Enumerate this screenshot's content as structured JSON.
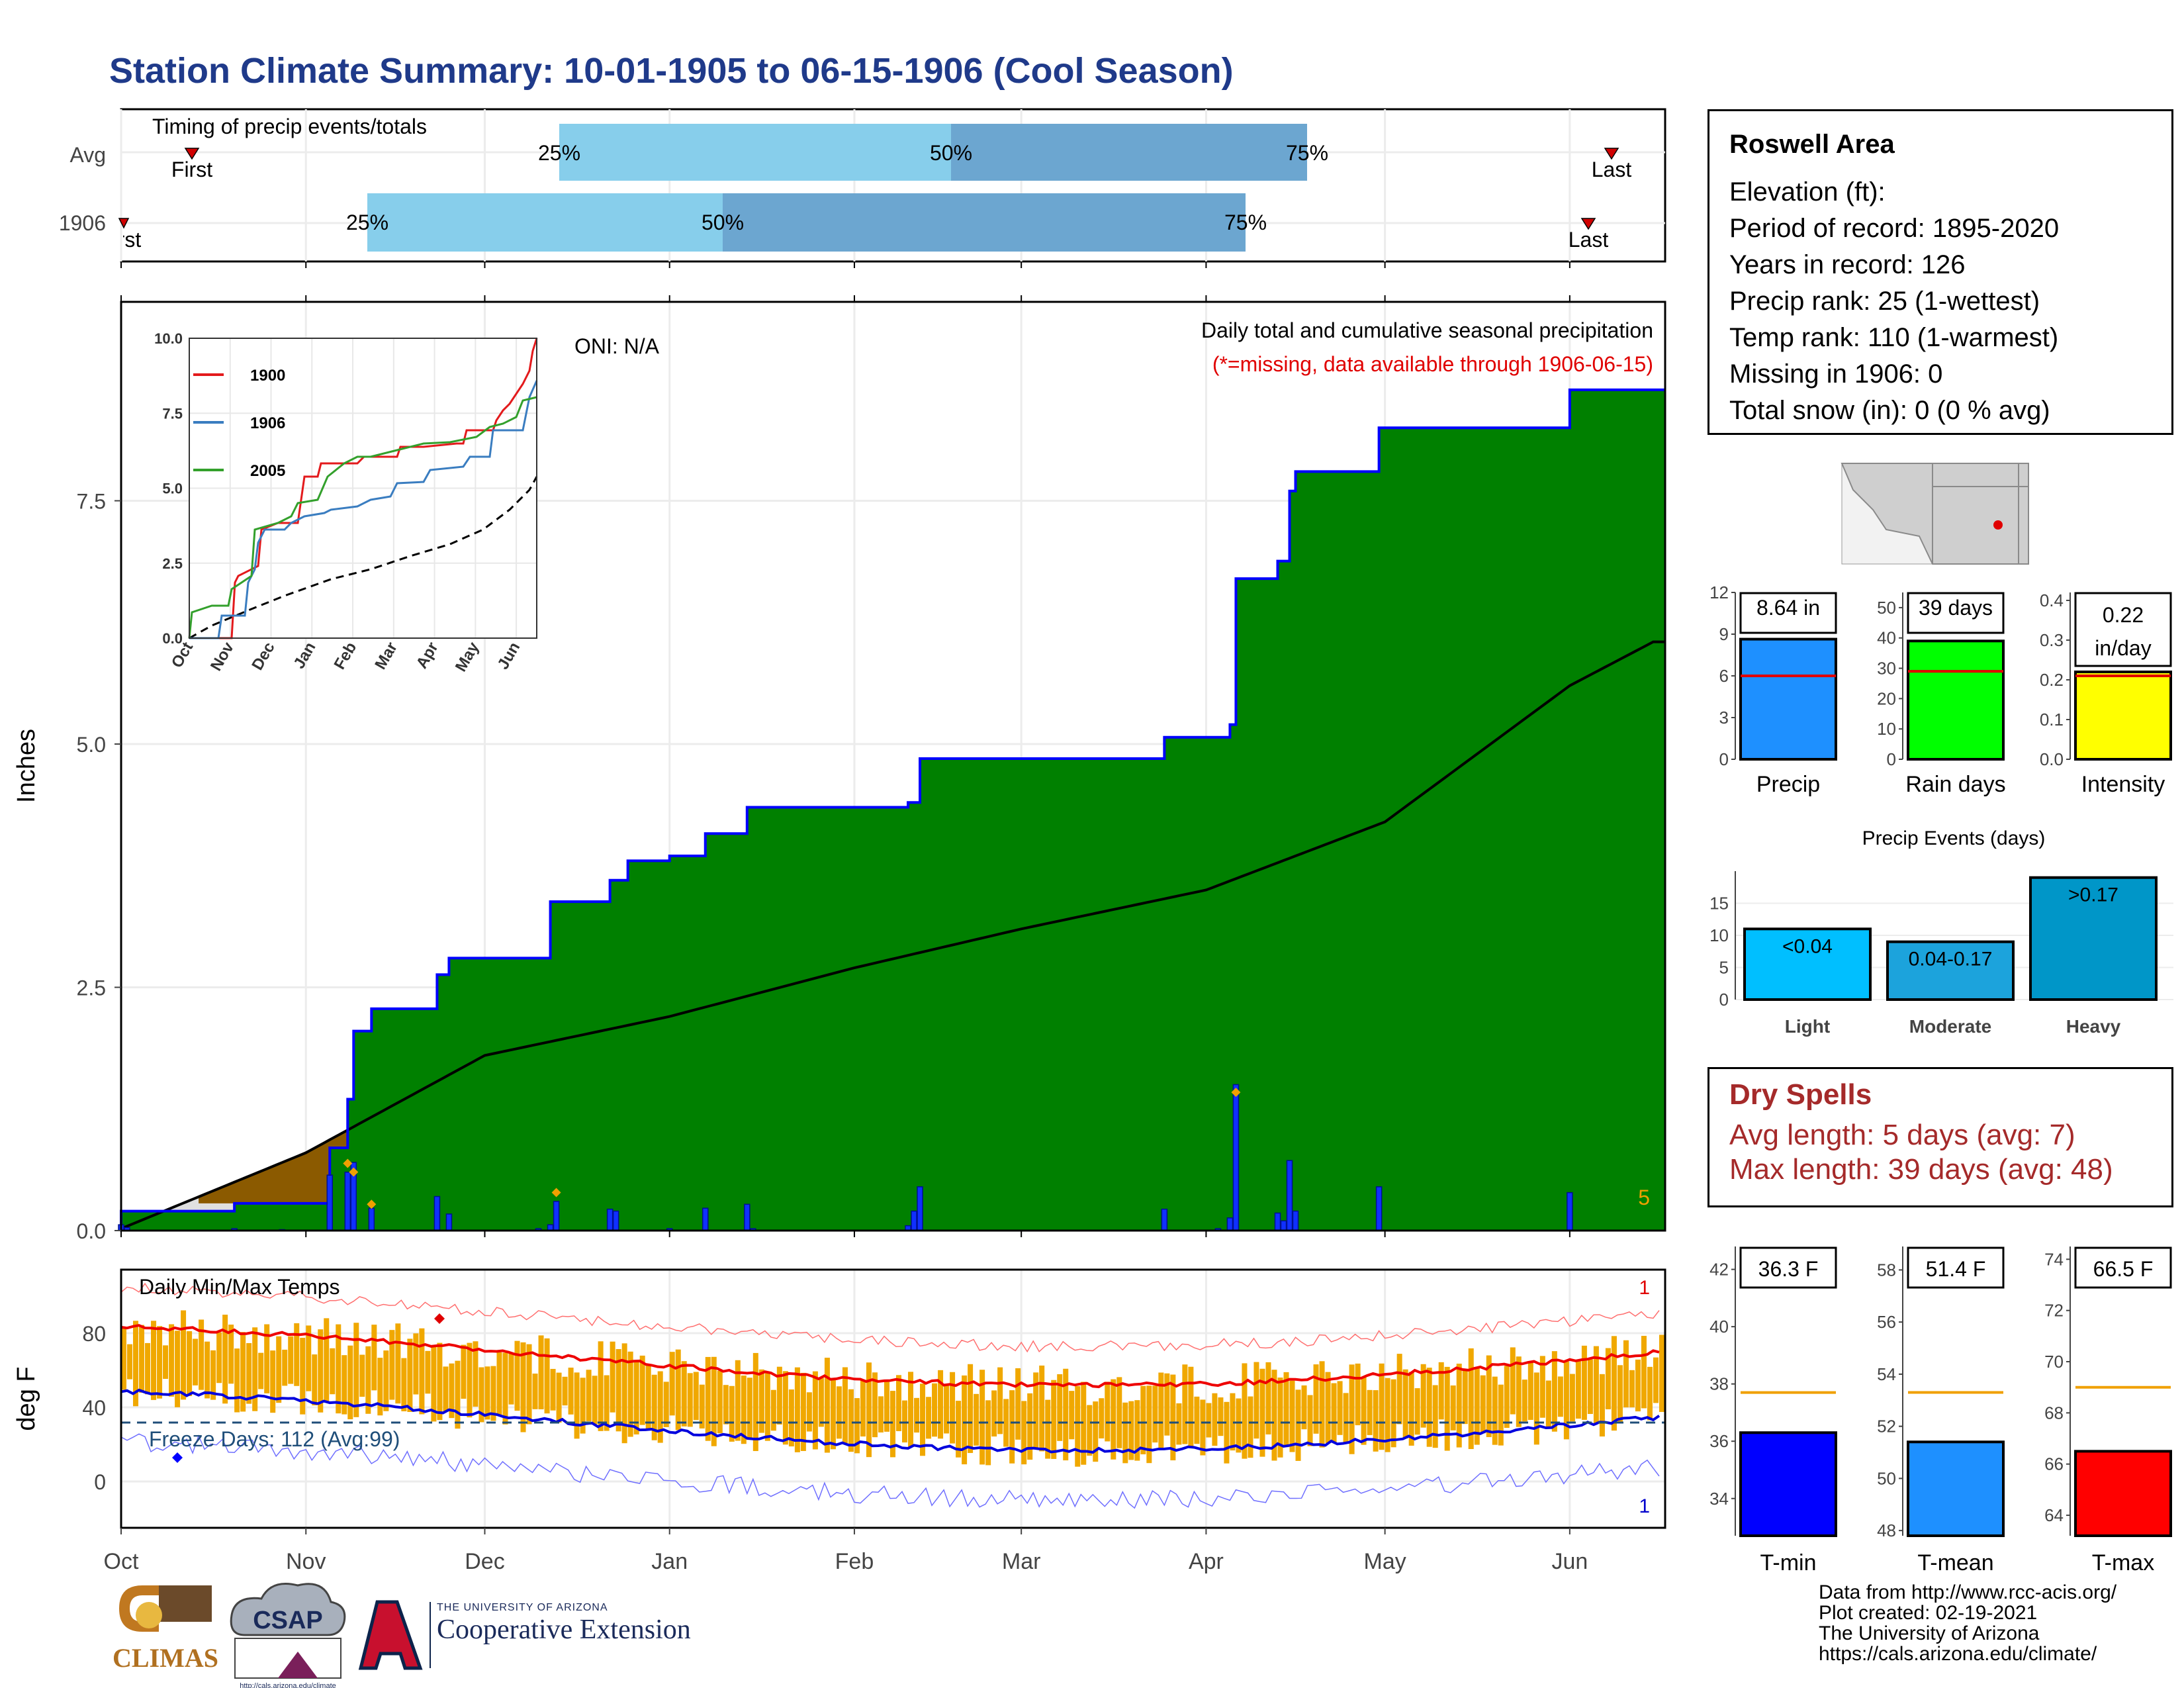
{
  "title": "Station Climate Summary: 10-01-1905 to 06-15-1906 (Cool Season)",
  "colors": {
    "title": "#1f3a8a",
    "green": "#008000",
    "brown": "#8b5a00",
    "gray_area": "#e0e0e0",
    "bar_blue": "#0000ff",
    "light_blue": "#87ceeb",
    "mid_blue": "#6ca6d0",
    "tmin": "#0000ff",
    "tmean": "#1e90ff",
    "tmax": "#ff0000",
    "orange": "#f0a000",
    "dry": "#a52a2a"
  },
  "timing": {
    "header": "Timing of precip events/totals",
    "rows": [
      "Avg",
      "1906"
    ],
    "avg": {
      "first_label": "First",
      "last_label": "Last",
      "p25": "25%",
      "p50": "50%",
      "p75": "75%"
    },
    "y1906": {
      "first_label": "First",
      "last_label": "Last",
      "p25": "25%",
      "p50": "50%",
      "p75": "75%"
    }
  },
  "precip_panel": {
    "ylabel": "Inches",
    "yticks": [
      "0.0",
      "2.5",
      "5.0",
      "7.5"
    ],
    "oni": "ONI: N/A",
    "subtitle": "Daily total and cumulative seasonal precipitation",
    "missing_note": "(*=missing, data available through 1906-06-15)",
    "corner_number": "5"
  },
  "inset": {
    "yticks": [
      "0.0",
      "2.5",
      "5.0",
      "7.5",
      "10.0"
    ],
    "xticks": [
      "Oct",
      "Nov",
      "Dec",
      "Jan",
      "Feb",
      "Mar",
      "Apr",
      "May",
      "Jun"
    ],
    "legend": [
      {
        "label": "1900",
        "color": "#e31a1c"
      },
      {
        "label": "1906",
        "color": "#3a7dc0"
      },
      {
        "label": "2005",
        "color": "#33a02c"
      }
    ]
  },
  "temp_panel": {
    "ylabel": "deg F",
    "header": "Daily Min/Max Temps",
    "yticks": [
      "0",
      "40",
      "80"
    ],
    "freeze": "Freeze Days: 112 (Avg:99)",
    "top_right": "1",
    "bottom_right": "1"
  },
  "xaxis": [
    "Oct",
    "Nov",
    "Dec",
    "Jan",
    "Feb",
    "Mar",
    "Apr",
    "May",
    "Jun"
  ],
  "info": {
    "station": "Roswell Area",
    "lines": [
      "Elevation (ft):",
      "Period of record: 1895-2020",
      "Years in record: 126",
      "Precip rank: 25 (1-wettest)",
      "Temp rank: 110 (1-warmest)",
      "Missing in 1906: 0",
      "Total snow (in): 0 (0 % avg)"
    ]
  },
  "precip_bars": {
    "labels": [
      "Precip",
      "Rain days",
      "Intensity"
    ],
    "values": [
      "8.64 in",
      "39 days",
      "0.22"
    ],
    "unit3": "in/day",
    "yticks1": [
      "0",
      "3",
      "6",
      "9",
      "12"
    ],
    "yticks2": [
      "0",
      "10",
      "20",
      "30",
      "40",
      "50"
    ],
    "yticks3": [
      "0.0",
      "0.1",
      "0.2",
      "0.3",
      "0.4"
    ]
  },
  "events": {
    "title": "Precip Events (days)",
    "categories": [
      "Light",
      "Moderate",
      "Heavy"
    ],
    "labels": [
      "<0.04",
      "0.04-0.17",
      ">0.17"
    ],
    "yticks": [
      "0",
      "5",
      "10",
      "15"
    ]
  },
  "dry_spells": {
    "title": "Dry Spells",
    "lines": [
      "Avg length: 5 days (avg: 7)",
      "Max length: 39 days (avg: 48)"
    ]
  },
  "temp_bars": {
    "labels": [
      "T-min",
      "T-mean",
      "T-max"
    ],
    "values": [
      "36.3 F",
      "51.4 F",
      "66.5 F"
    ],
    "yticks1": [
      "34",
      "36",
      "38",
      "40",
      "42"
    ],
    "yticks2": [
      "48",
      "50",
      "52",
      "54",
      "56",
      "58"
    ],
    "yticks3": [
      "64",
      "66",
      "68",
      "70",
      "72",
      "74"
    ]
  },
  "footer": [
    "Data from http://www.rcc-acis.org/",
    "Plot created: 02-19-2021",
    "The University of Arizona",
    "https://cals.arizona.edu/climate/"
  ],
  "logos": {
    "climas": "CLIMAS",
    "csap": "CSAP",
    "csap_url": "http://cals.arizona.edu/climate",
    "ua_small": "THE UNIVERSITY OF ARIZONA",
    "coop": "Cooperative Extension"
  },
  "chart_data": {
    "type": "area",
    "title": "Station Climate Summary: 10-01-1905 to 06-15-1906 (Cool Season)",
    "ylabel": "Inches",
    "ylim": [
      0,
      10
    ],
    "series": [
      {
        "name": "cumulative",
        "points": [
          [
            "1905-10-01",
            0.2
          ],
          [
            "1905-10-20",
            0.28
          ],
          [
            "1905-11-05",
            0.85
          ],
          [
            "1905-11-08",
            1.35
          ],
          [
            "1905-11-09",
            2.05
          ],
          [
            "1905-11-12",
            2.28
          ],
          [
            "1905-11-23",
            2.63
          ],
          [
            "1905-11-25",
            2.8
          ],
          [
            "1905-12-12",
            3.38
          ],
          [
            "1905-12-22",
            3.6
          ],
          [
            "1905-12-25",
            3.8
          ],
          [
            "1906-01-01",
            3.85
          ],
          [
            "1906-01-07",
            4.08
          ],
          [
            "1906-01-14",
            4.35
          ],
          [
            "1906-02-10",
            4.4
          ],
          [
            "1906-02-12",
            4.85
          ],
          [
            "1906-03-25",
            5.07
          ],
          [
            "1906-04-05",
            5.2
          ],
          [
            "1906-04-06",
            6.7
          ],
          [
            "1906-04-13",
            6.88
          ],
          [
            "1906-04-15",
            7.6
          ],
          [
            "1906-04-16",
            7.8
          ],
          [
            "1906-04-30",
            8.25
          ],
          [
            "1906-06-01",
            8.64
          ]
        ]
      },
      {
        "name": "average",
        "points": [
          [
            "1905-10-01",
            0.02
          ],
          [
            "1905-11-01",
            0.8
          ],
          [
            "1905-12-01",
            1.8
          ],
          [
            "1906-01-01",
            2.2
          ],
          [
            "1906-02-01",
            2.7
          ],
          [
            "1906-03-01",
            3.1
          ],
          [
            "1906-04-01",
            3.5
          ],
          [
            "1906-05-01",
            4.2
          ],
          [
            "1906-06-01",
            5.6
          ],
          [
            "1906-06-15",
            6.05
          ]
        ]
      }
    ]
  }
}
